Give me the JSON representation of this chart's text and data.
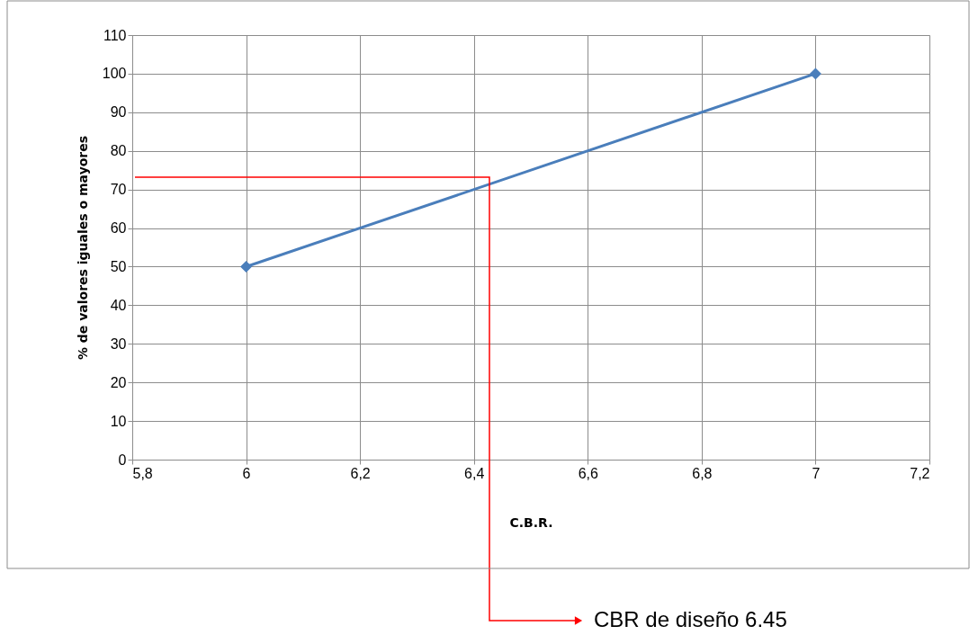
{
  "chart_data": {
    "type": "line",
    "xlabel": "C.B.R.",
    "ylabel": "% de valores iguales o mayores",
    "x": [
      6,
      7
    ],
    "series": [
      {
        "color": "#4a7ebb",
        "values": [
          50,
          100
        ],
        "marker": "diamond"
      }
    ],
    "line_style": "solid",
    "grid": true,
    "legend": false,
    "xlim": [
      5.8,
      7.2
    ],
    "xticks": [
      {
        "value": 5.8,
        "label": "5,8"
      },
      6,
      {
        "value": 6.2,
        "label": "6,2"
      },
      {
        "value": 6.4,
        "label": "6,4"
      },
      {
        "value": 6.6,
        "label": "6,6"
      },
      {
        "value": 6.8,
        "label": "6,8"
      },
      7,
      {
        "value": 7.2,
        "label": "7,2"
      }
    ],
    "ylim": [
      0,
      110
    ],
    "yticks": [
      0,
      10,
      20,
      30,
      40,
      50,
      60,
      70,
      80,
      90,
      100,
      110
    ],
    "annotations": [
      "CBR de diseño 6.45"
    ]
  }
}
